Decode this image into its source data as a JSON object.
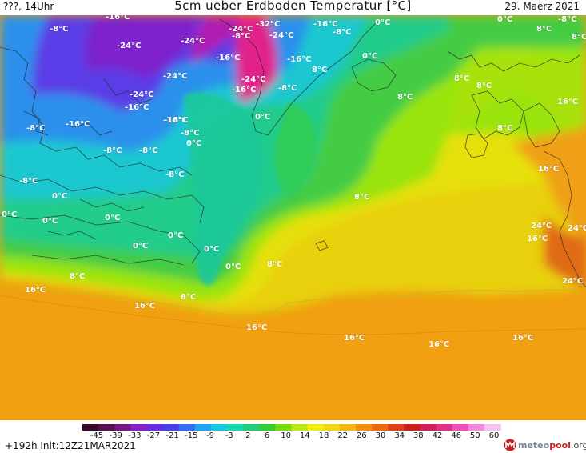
{
  "header": {
    "left_text": "???, 14Uhr",
    "title": "5cm ueber Erdboden Temperatur [°C]",
    "date": "29. Maerz 2021"
  },
  "map": {
    "labels": [
      {
        "text": "-8°C"
      },
      {
        "text": "-16°C"
      },
      {
        "text": "-24°C"
      },
      {
        "text": "-24°C"
      },
      {
        "text": "-24°C"
      },
      {
        "text": "-32°C"
      },
      {
        "text": "-24°C"
      },
      {
        "text": "-8°C"
      },
      {
        "text": "-16°C"
      },
      {
        "text": "-8°C"
      },
      {
        "text": "0°C"
      },
      {
        "text": "0°C"
      },
      {
        "text": "-8°C"
      },
      {
        "text": "8°C"
      },
      {
        "text": "8°C"
      },
      {
        "text": "-16°C"
      },
      {
        "text": "-16°C"
      },
      {
        "text": "0°C"
      },
      {
        "text": "-24°C"
      },
      {
        "text": "-24°C"
      },
      {
        "text": "-16°C"
      },
      {
        "text": "-8°C"
      },
      {
        "text": "-24°C"
      },
      {
        "text": "-16°C"
      },
      {
        "text": "8°C"
      },
      {
        "text": "8°C"
      },
      {
        "text": "8°C"
      },
      {
        "text": "16°C"
      },
      {
        "text": "-16°C"
      },
      {
        "text": "0°C"
      },
      {
        "text": "8°C"
      },
      {
        "text": "-8°C"
      },
      {
        "text": "-16°C"
      },
      {
        "text": "-16°C"
      },
      {
        "text": "8°C"
      },
      {
        "text": "-8°C"
      },
      {
        "text": "0°C"
      },
      {
        "text": "-8°C"
      },
      {
        "text": "-8°C"
      },
      {
        "text": "16°C"
      },
      {
        "text": "-8°C"
      },
      {
        "text": "-8°C"
      },
      {
        "text": "0°C"
      },
      {
        "text": "8°C"
      },
      {
        "text": "0°C"
      },
      {
        "text": "0°C"
      },
      {
        "text": "0°C"
      },
      {
        "text": "24°C"
      },
      {
        "text": "24°C"
      },
      {
        "text": "16°C"
      },
      {
        "text": "0°C"
      },
      {
        "text": "0°C"
      },
      {
        "text": "0°C"
      },
      {
        "text": "0°C"
      },
      {
        "text": "8°C"
      },
      {
        "text": "24°C"
      },
      {
        "text": "8°C"
      },
      {
        "text": "16°C"
      },
      {
        "text": "8°C"
      },
      {
        "text": "16°C"
      },
      {
        "text": "16°C"
      },
      {
        "text": "16°C"
      },
      {
        "text": "16°C"
      },
      {
        "text": "16°C"
      }
    ]
  },
  "legend": {
    "ticks": [
      "-45",
      "-39",
      "-33",
      "-27",
      "-21",
      "-15",
      "-9",
      "-3",
      "2",
      "6",
      "10",
      "14",
      "18",
      "22",
      "26",
      "30",
      "34",
      "38",
      "42",
      "46",
      "50",
      "60"
    ],
    "colors": [
      "#3a0a2c",
      "#5a0f55",
      "#7a138a",
      "#8a1ec4",
      "#6a2ae0",
      "#4a40e8",
      "#3070f0",
      "#20a4ee",
      "#19c8e0",
      "#19d8b4",
      "#22cc7a",
      "#33cc33",
      "#77dd11",
      "#bbe811",
      "#eeee11",
      "#f2d611",
      "#f4b411",
      "#f29012",
      "#ea6a14",
      "#de4018",
      "#c8201a",
      "#d02058",
      "#e0308c",
      "#ee50c0",
      "#f488e0",
      "#f8c0f0"
    ]
  },
  "footer": {
    "run": "+192h Init:12Z21MAR2021",
    "brand_a": "meteo",
    "brand_b": "pool",
    "brand_c": ".org"
  }
}
